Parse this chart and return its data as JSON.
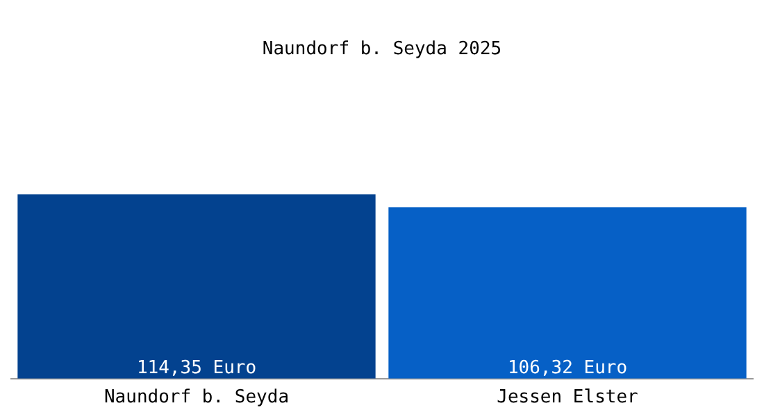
{
  "chart_data": {
    "type": "bar",
    "title": "Naundorf b. Seyda 2025",
    "categories": [
      "Naundorf b. Seyda",
      "Jessen Elster"
    ],
    "values": [
      114.35,
      106.32
    ],
    "colors": [
      "#03428f",
      "#0660c6"
    ],
    "value_labels": [
      "114,35 Euro",
      "106,32 Euro"
    ],
    "legend": false,
    "grid": false
  }
}
